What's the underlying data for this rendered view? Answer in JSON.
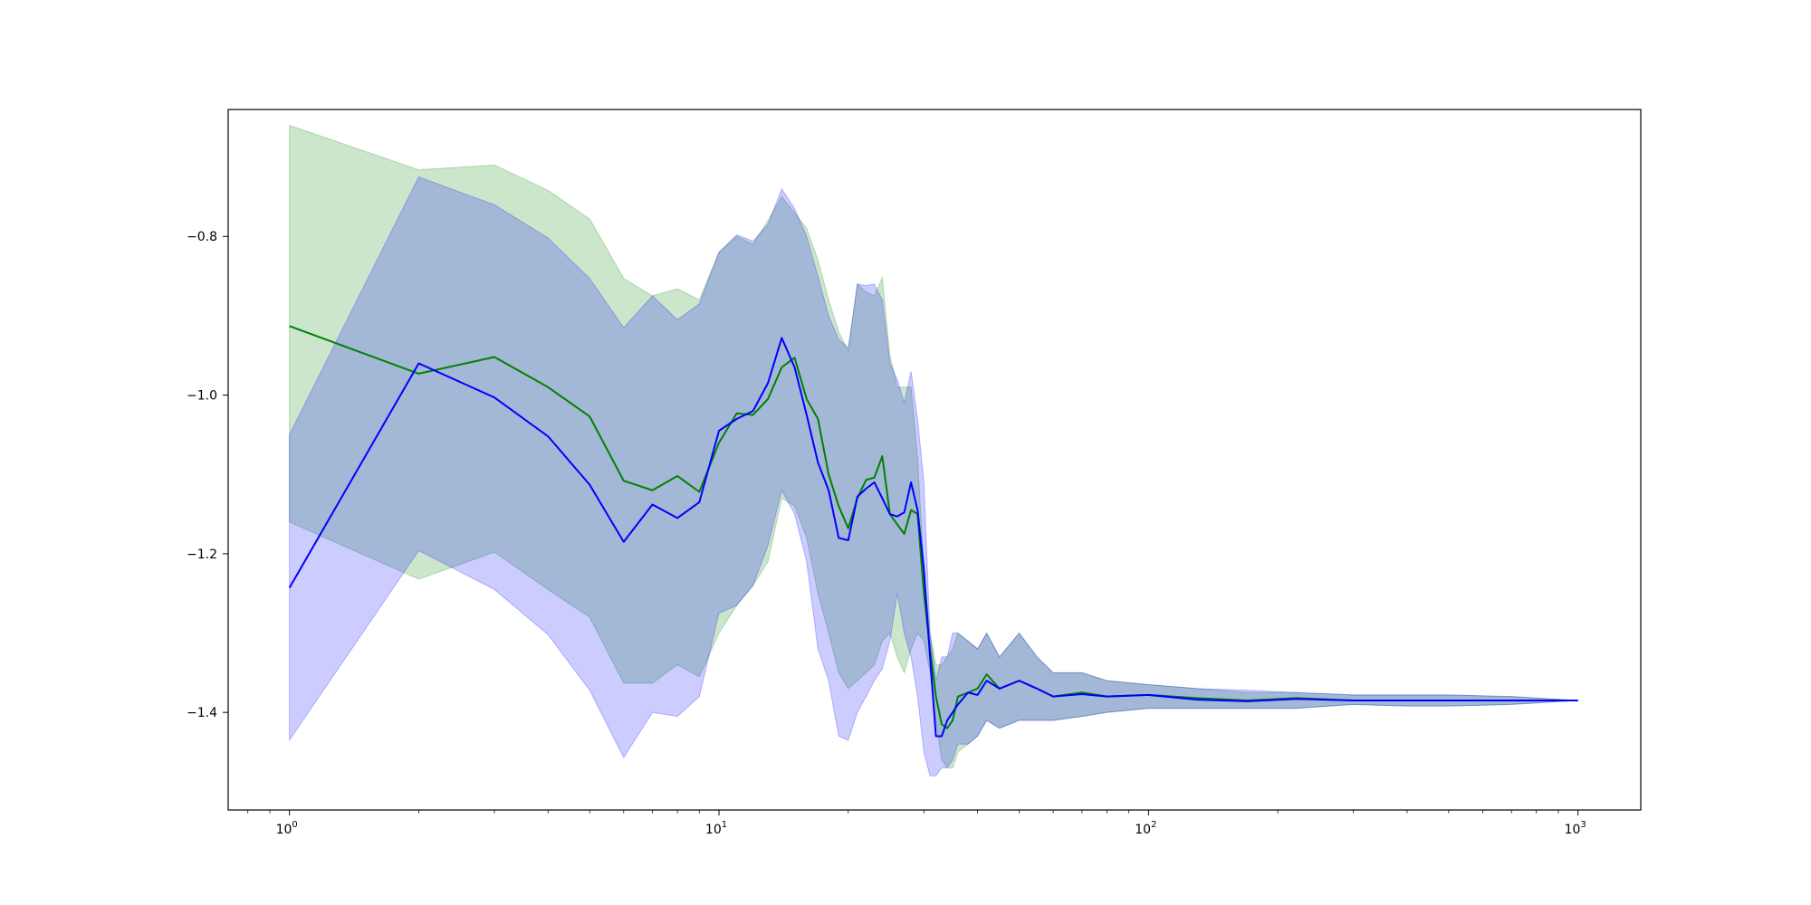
{
  "chart_data": {
    "type": "line",
    "title": "",
    "xlabel": "",
    "ylabel": "",
    "xscale": "log",
    "xlim": [
      0.72,
      1400
    ],
    "ylim": [
      -1.523,
      -0.64
    ],
    "grid": false,
    "legend": "none",
    "x_ticks": [
      {
        "value": 1,
        "base": "10",
        "exp": "0"
      },
      {
        "value": 10,
        "base": "10",
        "exp": "1"
      },
      {
        "value": 100,
        "base": "10",
        "exp": "2"
      },
      {
        "value": 1000,
        "base": "10",
        "exp": "3"
      }
    ],
    "y_ticks": [
      {
        "value": -0.8,
        "label": "−0.8"
      },
      {
        "value": -1.0,
        "label": "−1.0"
      },
      {
        "value": -1.2,
        "label": "−1.2"
      },
      {
        "value": -1.4,
        "label": "−1.4"
      }
    ],
    "series": [
      {
        "color": "#008000",
        "band_color": "#008000",
        "x": [
          1,
          2,
          3,
          4,
          5,
          6,
          7,
          8,
          9,
          10,
          11,
          12,
          13,
          14,
          15,
          16,
          17,
          18,
          19,
          20,
          21,
          22,
          23,
          24,
          25,
          26,
          27,
          28,
          29,
          30,
          31,
          32,
          33,
          34,
          35,
          36,
          38,
          40,
          42,
          45,
          50,
          55,
          60,
          70,
          80,
          100,
          130,
          170,
          220,
          300,
          400,
          500,
          700,
          1000
        ],
        "mean": [
          -0.913,
          -0.973,
          -0.952,
          -0.99,
          -1.027,
          -1.108,
          -1.12,
          -1.102,
          -1.122,
          -1.06,
          -1.023,
          -1.025,
          -1.005,
          -0.965,
          -0.953,
          -1.005,
          -1.03,
          -1.1,
          -1.14,
          -1.168,
          -1.13,
          -1.107,
          -1.104,
          -1.077,
          -1.15,
          -1.163,
          -1.175,
          -1.145,
          -1.15,
          -1.25,
          -1.32,
          -1.38,
          -1.415,
          -1.42,
          -1.41,
          -1.38,
          -1.375,
          -1.37,
          -1.352,
          -1.37,
          -1.36,
          -1.37,
          -1.38,
          -1.375,
          -1.38,
          -1.378,
          -1.382,
          -1.385,
          -1.382,
          -1.385,
          -1.385,
          -1.385,
          -1.385,
          -1.385
        ],
        "upper": [
          -0.66,
          -0.716,
          -0.71,
          -0.742,
          -0.778,
          -0.853,
          -0.875,
          -0.866,
          -0.88,
          -0.82,
          -0.8,
          -0.81,
          -0.78,
          -0.75,
          -0.77,
          -0.79,
          -0.83,
          -0.88,
          -0.92,
          -0.945,
          -0.86,
          -0.87,
          -0.875,
          -0.852,
          -0.95,
          -0.99,
          -0.99,
          -0.99,
          -1.08,
          -1.22,
          -1.3,
          -1.34,
          -1.34,
          -1.33,
          -1.32,
          -1.3,
          -1.31,
          -1.32,
          -1.3,
          -1.33,
          -1.3,
          -1.33,
          -1.35,
          -1.35,
          -1.36,
          -1.365,
          -1.37,
          -1.375,
          -1.375,
          -1.378,
          -1.378,
          -1.378,
          -1.38,
          -1.385
        ],
        "lower": [
          -1.16,
          -1.232,
          -1.198,
          -1.245,
          -1.28,
          -1.363,
          -1.363,
          -1.34,
          -1.355,
          -1.3,
          -1.265,
          -1.24,
          -1.21,
          -1.13,
          -1.14,
          -1.18,
          -1.25,
          -1.3,
          -1.35,
          -1.37,
          -1.36,
          -1.35,
          -1.34,
          -1.31,
          -1.3,
          -1.33,
          -1.35,
          -1.32,
          -1.3,
          -1.31,
          -1.35,
          -1.41,
          -1.46,
          -1.47,
          -1.47,
          -1.45,
          -1.44,
          -1.43,
          -1.41,
          -1.42,
          -1.41,
          -1.41,
          -1.41,
          -1.405,
          -1.4,
          -1.395,
          -1.395,
          -1.395,
          -1.395,
          -1.39,
          -1.392,
          -1.392,
          -1.39,
          -1.385
        ]
      },
      {
        "color": "#0000ff",
        "band_color": "#0000ff",
        "x": [
          1,
          2,
          3,
          4,
          5,
          6,
          7,
          8,
          9,
          10,
          11,
          12,
          13,
          14,
          15,
          16,
          17,
          18,
          19,
          20,
          21,
          22,
          23,
          24,
          25,
          26,
          27,
          28,
          29,
          30,
          31,
          32,
          33,
          34,
          35,
          36,
          38,
          40,
          42,
          45,
          50,
          55,
          60,
          70,
          80,
          100,
          130,
          170,
          220,
          300,
          400,
          500,
          700,
          1000
        ],
        "mean": [
          -1.243,
          -0.96,
          -1.003,
          -1.052,
          -1.113,
          -1.185,
          -1.138,
          -1.155,
          -1.135,
          -1.045,
          -1.03,
          -1.02,
          -0.985,
          -0.928,
          -0.965,
          -1.025,
          -1.085,
          -1.12,
          -1.18,
          -1.183,
          -1.128,
          -1.118,
          -1.11,
          -1.13,
          -1.15,
          -1.153,
          -1.148,
          -1.11,
          -1.145,
          -1.22,
          -1.33,
          -1.43,
          -1.43,
          -1.41,
          -1.4,
          -1.39,
          -1.375,
          -1.378,
          -1.36,
          -1.37,
          -1.36,
          -1.37,
          -1.38,
          -1.377,
          -1.38,
          -1.378,
          -1.384,
          -1.386,
          -1.383,
          -1.385,
          -1.385,
          -1.385,
          -1.385,
          -1.385
        ],
        "upper": [
          -1.05,
          -0.725,
          -0.76,
          -0.802,
          -0.853,
          -0.915,
          -0.875,
          -0.905,
          -0.885,
          -0.82,
          -0.798,
          -0.806,
          -0.785,
          -0.74,
          -0.765,
          -0.8,
          -0.85,
          -0.9,
          -0.93,
          -0.94,
          -0.86,
          -0.862,
          -0.86,
          -0.88,
          -0.96,
          -0.98,
          -1.01,
          -0.97,
          -1.03,
          -1.11,
          -1.3,
          -1.36,
          -1.33,
          -1.33,
          -1.3,
          -1.3,
          -1.31,
          -1.32,
          -1.3,
          -1.33,
          -1.3,
          -1.33,
          -1.35,
          -1.35,
          -1.36,
          -1.365,
          -1.37,
          -1.372,
          -1.375,
          -1.378,
          -1.378,
          -1.378,
          -1.38,
          -1.385
        ],
        "lower": [
          -1.435,
          -1.196,
          -1.245,
          -1.302,
          -1.372,
          -1.457,
          -1.4,
          -1.405,
          -1.38,
          -1.275,
          -1.265,
          -1.24,
          -1.19,
          -1.12,
          -1.15,
          -1.21,
          -1.32,
          -1.36,
          -1.43,
          -1.435,
          -1.4,
          -1.38,
          -1.36,
          -1.345,
          -1.31,
          -1.25,
          -1.3,
          -1.33,
          -1.38,
          -1.45,
          -1.48,
          -1.48,
          -1.47,
          -1.47,
          -1.46,
          -1.44,
          -1.44,
          -1.43,
          -1.41,
          -1.42,
          -1.41,
          -1.41,
          -1.41,
          -1.405,
          -1.4,
          -1.395,
          -1.395,
          -1.395,
          -1.395,
          -1.39,
          -1.392,
          -1.392,
          -1.39,
          -1.385
        ]
      }
    ]
  }
}
